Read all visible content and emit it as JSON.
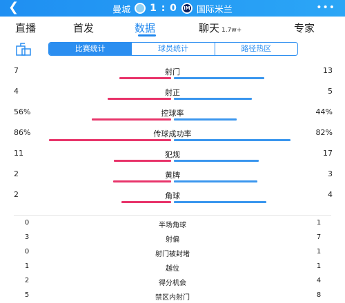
{
  "header": {
    "back_icon": "chevron-left-icon",
    "home_team": "曼城",
    "score": "1 : 0",
    "away_team": "国际米兰",
    "more_icon": "more-dots-icon"
  },
  "tabs": [
    {
      "label": "直播"
    },
    {
      "label": "首发"
    },
    {
      "label": "数据"
    },
    {
      "label": "聊天",
      "sub": "1.7w+"
    },
    {
      "label": "专家"
    }
  ],
  "active_tab": "数据",
  "segments": [
    "比赛统计",
    "球员统计",
    "路径热区"
  ],
  "active_segment": "比赛统计",
  "colors": {
    "accent": "#1e86ee",
    "home_bar": "#e8346a",
    "away_bar": "#3a96ee"
  },
  "bar_stats": [
    {
      "label": "射门",
      "home": "7",
      "away": "13"
    },
    {
      "label": "射正",
      "home": "4",
      "away": "5"
    },
    {
      "label": "控球率",
      "home": "56%",
      "away": "44%"
    },
    {
      "label": "传球成功率",
      "home": "86%",
      "away": "82%"
    },
    {
      "label": "犯规",
      "home": "11",
      "away": "17"
    },
    {
      "label": "黄牌",
      "home": "2",
      "away": "3"
    },
    {
      "label": "角球",
      "home": "2",
      "away": "4"
    }
  ],
  "list_stats": [
    {
      "label": "半场角球",
      "home": "0",
      "away": "1"
    },
    {
      "label": "射偏",
      "home": "3",
      "away": "7"
    },
    {
      "label": "射门被封堵",
      "home": "0",
      "away": "1"
    },
    {
      "label": "越位",
      "home": "1",
      "away": "1"
    },
    {
      "label": "得分机会",
      "home": "2",
      "away": "4"
    },
    {
      "label": "禁区内射门",
      "home": "5",
      "away": "8"
    }
  ]
}
